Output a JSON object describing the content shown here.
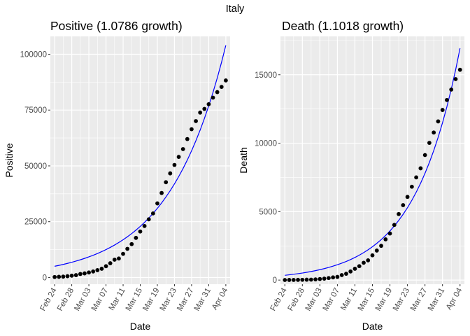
{
  "figure": {
    "title": "Italy"
  },
  "chart_data": [
    {
      "type": "scatter",
      "title": "Positive (1.0786 growth)",
      "xlabel": "Date",
      "ylabel": "Positive",
      "xlim": [
        "2020-02-23",
        "2020-04-05"
      ],
      "ylim": [
        -3000,
        108000
      ],
      "yticks": [
        0,
        25000,
        50000,
        75000,
        100000
      ],
      "yticklabels": [
        "0",
        "25000",
        "50000",
        "75000",
        "100000"
      ],
      "xticks": [
        "2020-02-24",
        "2020-02-28",
        "2020-03-03",
        "2020-03-07",
        "2020-03-11",
        "2020-03-15",
        "2020-03-19",
        "2020-03-23",
        "2020-03-27",
        "2020-03-31",
        "2020-04-04"
      ],
      "xticklabels": [
        "Feb 24",
        "Feb 28",
        "Mar 03",
        "Mar 07",
        "Mar 11",
        "Mar 15",
        "Mar 19",
        "Mar 23",
        "Mar 27",
        "Mar 31",
        "Apr 04"
      ],
      "grid": true,
      "background": "#ebebeb",
      "x": [
        "2020-02-24",
        "2020-02-25",
        "2020-02-26",
        "2020-02-27",
        "2020-02-28",
        "2020-02-29",
        "2020-03-01",
        "2020-03-02",
        "2020-03-03",
        "2020-03-04",
        "2020-03-05",
        "2020-03-06",
        "2020-03-07",
        "2020-03-08",
        "2020-03-09",
        "2020-03-10",
        "2020-03-11",
        "2020-03-12",
        "2020-03-13",
        "2020-03-14",
        "2020-03-15",
        "2020-03-16",
        "2020-03-17",
        "2020-03-18",
        "2020-03-19",
        "2020-03-20",
        "2020-03-21",
        "2020-03-22",
        "2020-03-23",
        "2020-03-24",
        "2020-03-25",
        "2020-03-26",
        "2020-03-27",
        "2020-03-28",
        "2020-03-29",
        "2020-03-30",
        "2020-03-31",
        "2020-04-01",
        "2020-04-02",
        "2020-04-03",
        "2020-04-04"
      ],
      "series": [
        {
          "kind": "points",
          "color": "#000000",
          "values": [
            221,
            311,
            385,
            588,
            821,
            1049,
            1577,
            1835,
            2263,
            2706,
            3296,
            3916,
            5061,
            6387,
            7985,
            8514,
            10590,
            12839,
            14955,
            17750,
            20603,
            23073,
            26062,
            28710,
            33190,
            37860,
            42681,
            46638,
            50418,
            54030,
            57521,
            62013,
            66414,
            70065,
            73880,
            75528,
            77635,
            80572,
            83049,
            85388,
            88274
          ]
        },
        {
          "kind": "fit_line",
          "color": "#0000ff",
          "values": [
            5040,
            5436,
            5864,
            6325,
            6822,
            7358,
            7936,
            8560,
            9233,
            9959,
            10742,
            11587,
            12498,
            13481,
            14541,
            15684,
            16917,
            18247,
            19681,
            21228,
            22897,
            24697,
            26638,
            28732,
            30991,
            33427,
            36055,
            38889,
            41946,
            45244,
            48800,
            52636,
            56774,
            61237,
            66051,
            71243,
            76844,
            82884,
            89400,
            96428,
            104008
          ]
        }
      ]
    },
    {
      "type": "scatter",
      "title": "Death (1.1018 growth)",
      "xlabel": "Date",
      "ylabel": "Death",
      "xlim": [
        "2020-02-23",
        "2020-04-05"
      ],
      "ylim": [
        -300,
        17800
      ],
      "yticks": [
        0,
        5000,
        10000,
        15000
      ],
      "yticklabels": [
        "0",
        "5000",
        "10000",
        "15000"
      ],
      "xticks": [
        "2020-02-24",
        "2020-02-28",
        "2020-03-03",
        "2020-03-07",
        "2020-03-11",
        "2020-03-15",
        "2020-03-19",
        "2020-03-23",
        "2020-03-27",
        "2020-03-31",
        "2020-04-04"
      ],
      "xticklabels": [
        "Feb 24",
        "Feb 28",
        "Mar 03",
        "Mar 07",
        "Mar 11",
        "Mar 15",
        "Mar 19",
        "Mar 23",
        "Mar 27",
        "Mar 31",
        "Apr 04"
      ],
      "grid": true,
      "background": "#ebebeb",
      "x": [
        "2020-02-24",
        "2020-02-25",
        "2020-02-26",
        "2020-02-27",
        "2020-02-28",
        "2020-02-29",
        "2020-03-01",
        "2020-03-02",
        "2020-03-03",
        "2020-03-04",
        "2020-03-05",
        "2020-03-06",
        "2020-03-07",
        "2020-03-08",
        "2020-03-09",
        "2020-03-10",
        "2020-03-11",
        "2020-03-12",
        "2020-03-13",
        "2020-03-14",
        "2020-03-15",
        "2020-03-16",
        "2020-03-17",
        "2020-03-18",
        "2020-03-19",
        "2020-03-20",
        "2020-03-21",
        "2020-03-22",
        "2020-03-23",
        "2020-03-24",
        "2020-03-25",
        "2020-03-26",
        "2020-03-27",
        "2020-03-28",
        "2020-03-29",
        "2020-03-30",
        "2020-03-31",
        "2020-04-01",
        "2020-04-02",
        "2020-04-03",
        "2020-04-04"
      ],
      "series": [
        {
          "kind": "points",
          "color": "#000000",
          "values": [
            7,
            10,
            12,
            17,
            21,
            29,
            34,
            52,
            79,
            107,
            148,
            197,
            233,
            366,
            463,
            631,
            827,
            1016,
            1266,
            1441,
            1809,
            2158,
            2503,
            2978,
            3405,
            4032,
            4825,
            5476,
            6077,
            6820,
            7503,
            8165,
            9134,
            10023,
            10779,
            11591,
            12428,
            13155,
            13915,
            14681,
            15362
          ]
        },
        {
          "kind": "fit_line",
          "color": "#0000ff",
          "values": [
            350,
            386,
            425,
            469,
            516,
            569,
            627,
            691,
            761,
            838,
            924,
            1018,
            1121,
            1236,
            1361,
            1500,
            1653,
            1821,
            2006,
            2211,
            2436,
            2684,
            2957,
            3258,
            3590,
            3955,
            4358,
            4801,
            5290,
            5829,
            6422,
            7076,
            7796,
            8590,
            9464,
            10428,
            11489,
            12659,
            13947,
            15367,
            16931
          ]
        }
      ]
    }
  ]
}
